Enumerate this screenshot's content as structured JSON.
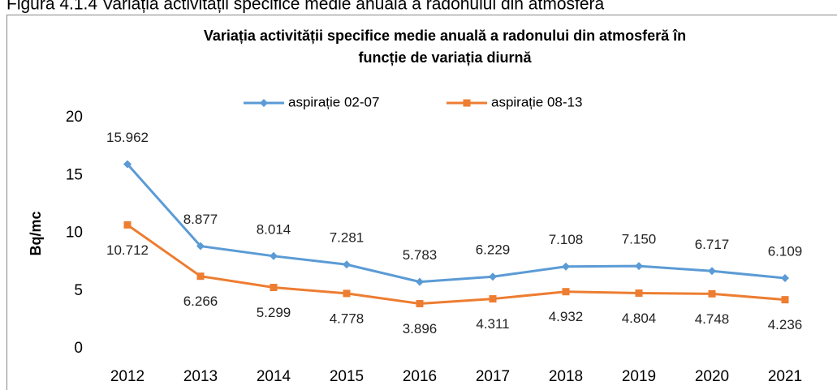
{
  "caption": "Figura 4.1.4 Variația activității specifice medie anuală a radonului din atmosferă",
  "chart_data": {
    "type": "line",
    "title": [
      "Variația activității specifice medie anuală a radonului din atmosferă în",
      "funcție de variația diurnă"
    ],
    "y_label": "Bq/mc",
    "categories": [
      "2012",
      "2013",
      "2014",
      "2015",
      "2016",
      "2017",
      "2018",
      "2019",
      "2020",
      "2021"
    ],
    "series": [
      {
        "name": "aspirație 02-07",
        "color": "#5b9bd5",
        "marker": "diamond",
        "values": [
          15.962,
          8.877,
          8.014,
          7.281,
          5.783,
          6.229,
          7.108,
          7.15,
          6.717,
          6.109
        ],
        "value_labels": [
          "15.962",
          "8.877",
          "8.014",
          "7.281",
          "5.783",
          "6.229",
          "7.108",
          "7.150",
          "6.717",
          "6.109"
        ]
      },
      {
        "name": "aspirație 08-13",
        "color": "#ed7d31",
        "marker": "square",
        "values": [
          10.712,
          6.266,
          5.299,
          4.778,
          3.896,
          4.311,
          4.932,
          4.804,
          4.748,
          4.236
        ],
        "value_labels": [
          "10.712",
          "6.266",
          "5.299",
          "4.778",
          "3.896",
          "4.311",
          "4.932",
          "4.804",
          "4.748",
          "4.236"
        ]
      }
    ],
    "ylim": [
      0,
      20
    ],
    "yticks": [
      0,
      5,
      10,
      15,
      20
    ],
    "legend": "top",
    "grid": false
  }
}
